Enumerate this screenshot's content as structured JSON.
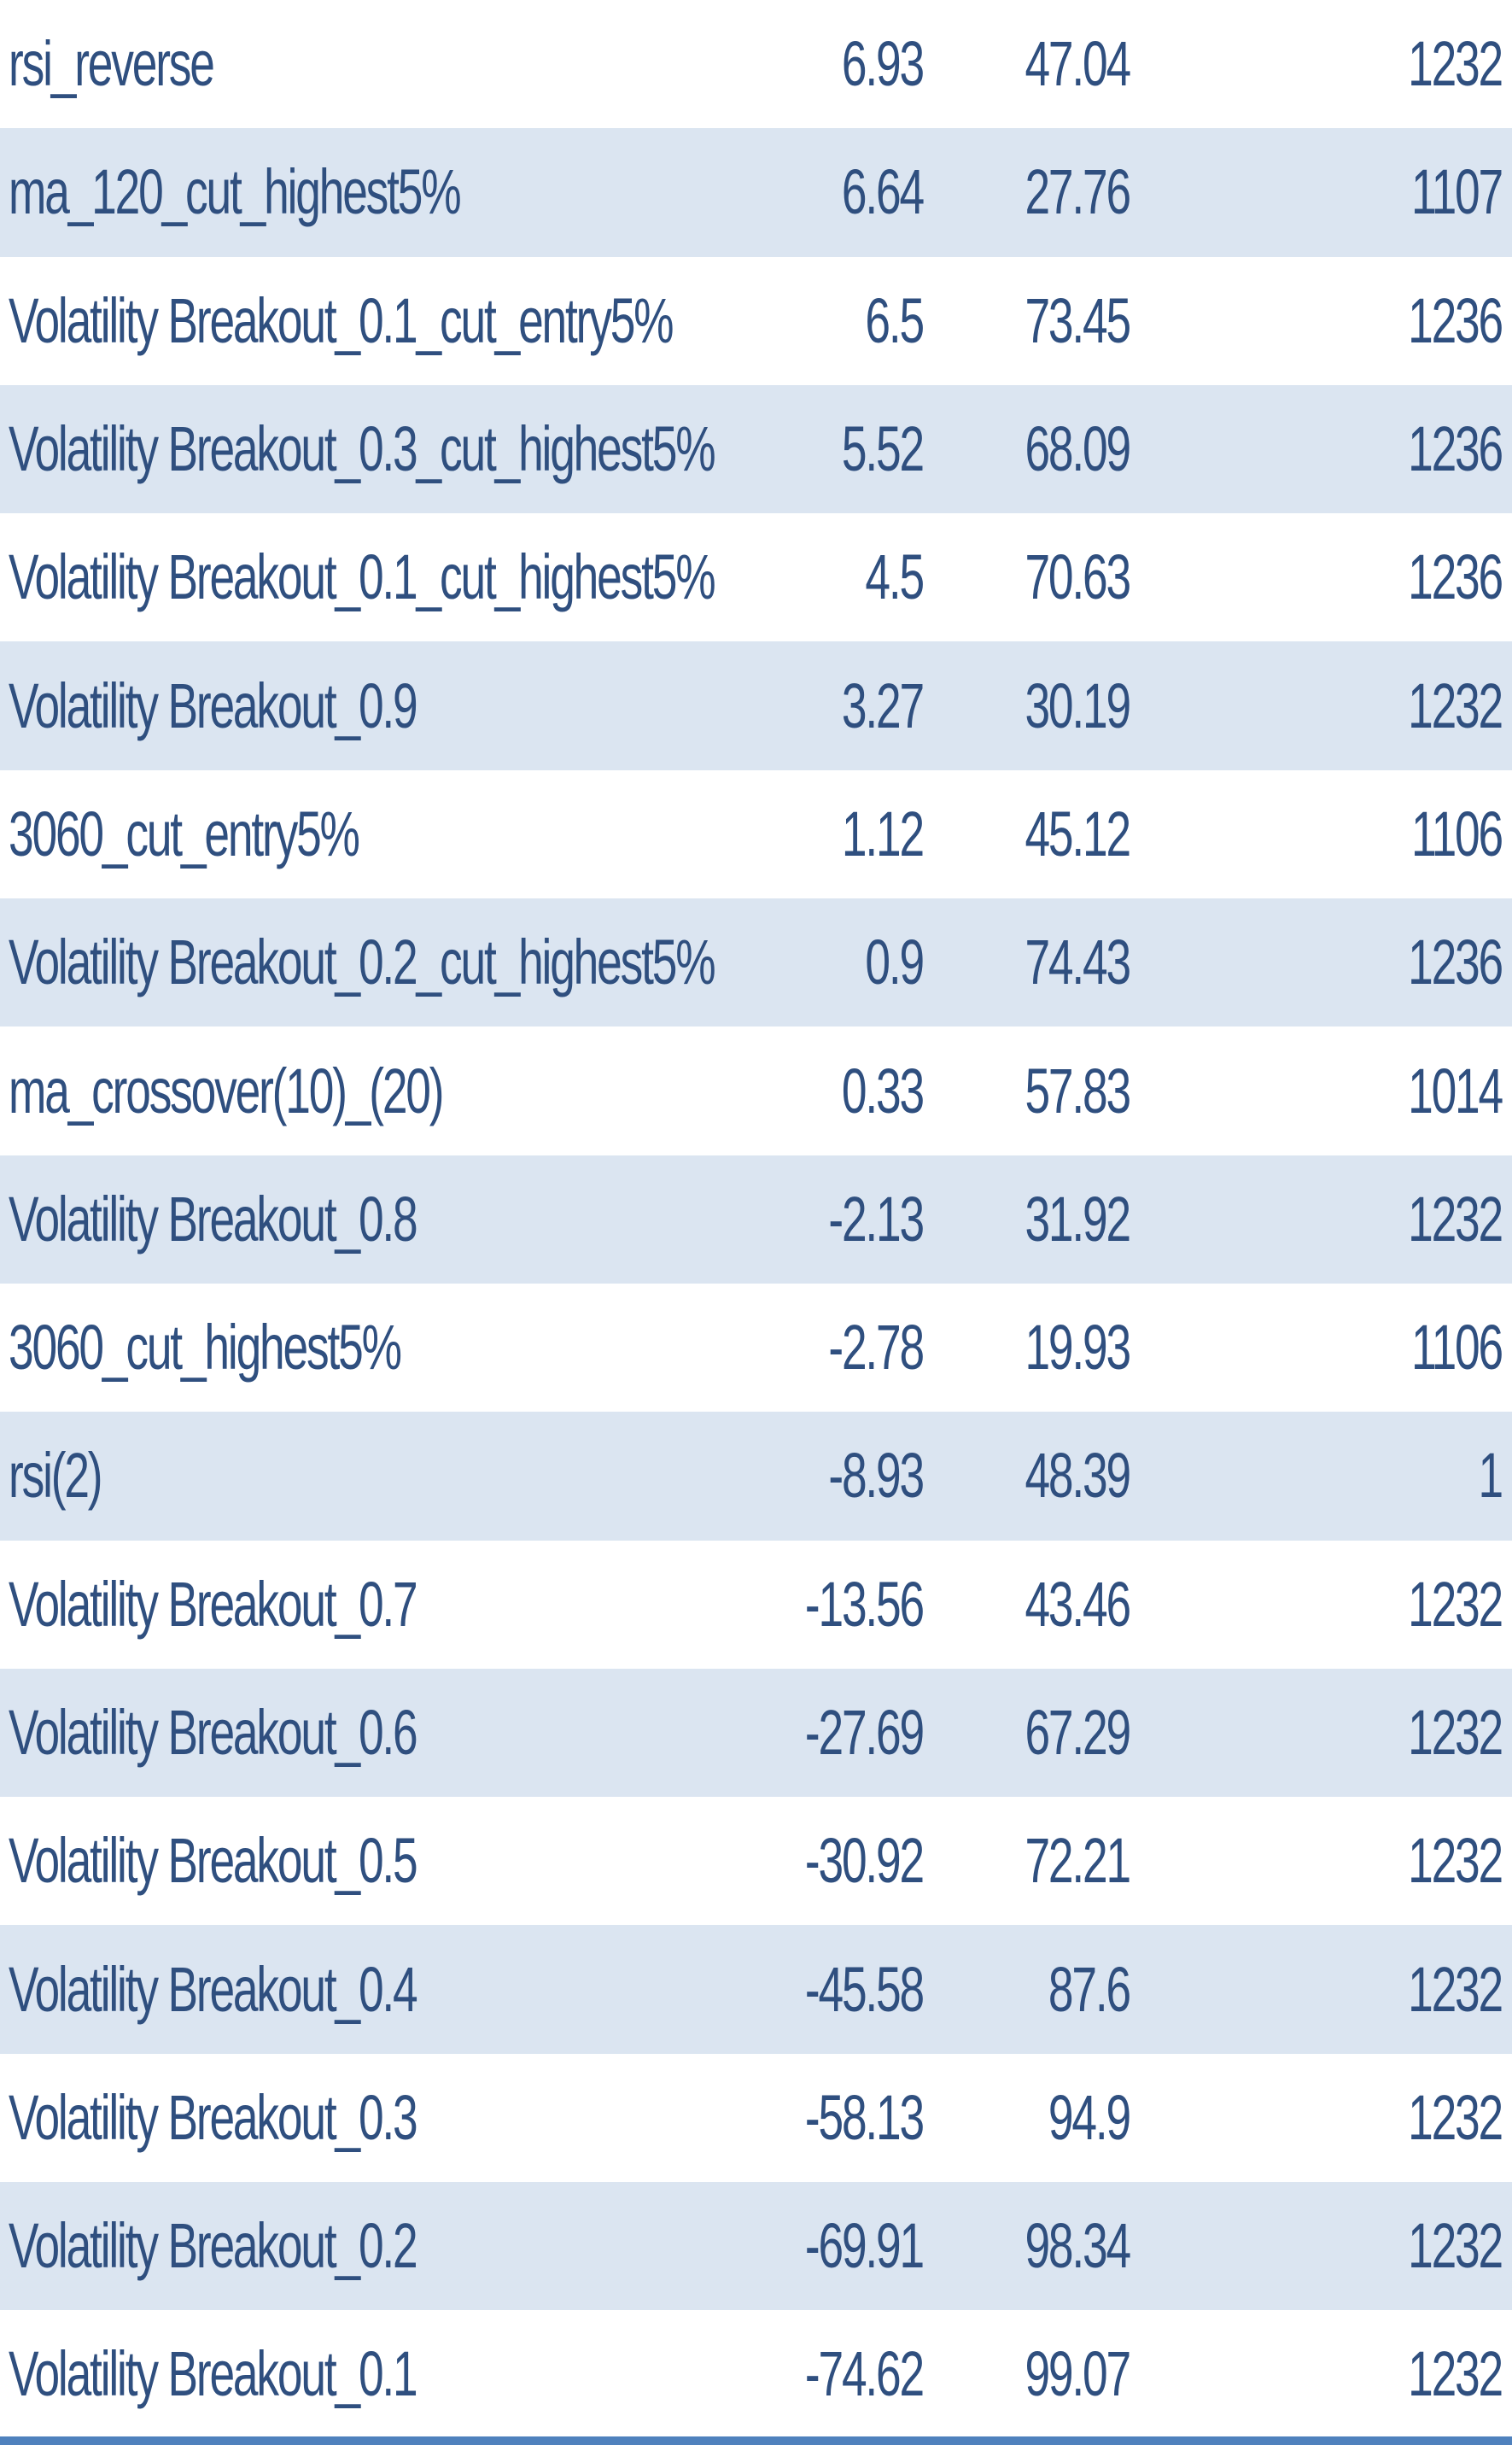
{
  "table": {
    "rows": [
      {
        "name": "rsi_reverse",
        "v1": "6.93",
        "v2": "47.04",
        "v3": "1232"
      },
      {
        "name": "ma_120_cut_highest5%",
        "v1": "6.64",
        "v2": "27.76",
        "v3": "1107"
      },
      {
        "name": "Volatility Breakout_0.1_cut_entry5%",
        "v1": "6.5",
        "v2": "73.45",
        "v3": "1236"
      },
      {
        "name": "Volatility Breakout_0.3_cut_highest5%",
        "v1": "5.52",
        "v2": "68.09",
        "v3": "1236"
      },
      {
        "name": "Volatility Breakout_0.1_cut_highest5%",
        "v1": "4.5",
        "v2": "70.63",
        "v3": "1236"
      },
      {
        "name": "Volatility Breakout_0.9",
        "v1": "3.27",
        "v2": "30.19",
        "v3": "1232"
      },
      {
        "name": "3060_cut_entry5%",
        "v1": "1.12",
        "v2": "45.12",
        "v3": "1106"
      },
      {
        "name": "Volatility Breakout_0.2_cut_highest5%",
        "v1": "0.9",
        "v2": "74.43",
        "v3": "1236"
      },
      {
        "name": "ma_crossover(10)_(20)",
        "v1": "0.33",
        "v2": "57.83",
        "v3": "1014"
      },
      {
        "name": "Volatility Breakout_0.8",
        "v1": "-2.13",
        "v2": "31.92",
        "v3": "1232"
      },
      {
        "name": "3060_cut_highest5%",
        "v1": "-2.78",
        "v2": "19.93",
        "v3": "1106"
      },
      {
        "name": "rsi(2)",
        "v1": "-8.93",
        "v2": "48.39",
        "v3": "1"
      },
      {
        "name": "Volatility Breakout_0.7",
        "v1": "-13.56",
        "v2": "43.46",
        "v3": "1232"
      },
      {
        "name": "Volatility Breakout_0.6",
        "v1": "-27.69",
        "v2": "67.29",
        "v3": "1232"
      },
      {
        "name": "Volatility Breakout_0.5",
        "v1": "-30.92",
        "v2": "72.21",
        "v3": "1232"
      },
      {
        "name": "Volatility Breakout_0.4",
        "v1": "-45.58",
        "v2": "87.6",
        "v3": "1232"
      },
      {
        "name": "Volatility Breakout_0.3",
        "v1": "-58.13",
        "v2": "94.9",
        "v3": "1232"
      },
      {
        "name": "Volatility Breakout_0.2",
        "v1": "-69.91",
        "v2": "98.34",
        "v3": "1232"
      },
      {
        "name": "Volatility Breakout_0.1",
        "v1": "-74.62",
        "v2": "99.07",
        "v3": "1232"
      }
    ]
  },
  "colors": {
    "text": "#2f4f7f",
    "band": "#dbe5f1",
    "border": "#4f81bd"
  }
}
